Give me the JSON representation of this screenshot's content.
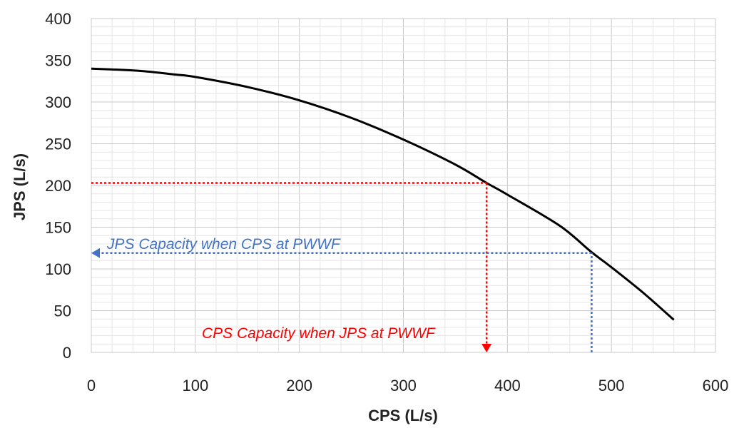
{
  "chart_data": {
    "type": "line",
    "xlabel": "CPS (L/s)",
    "ylabel": "JPS (L/s)",
    "xlim": [
      0,
      600
    ],
    "ylim": [
      0,
      400
    ],
    "xticks": [
      "0",
      "100",
      "200",
      "300",
      "400",
      "500",
      "600"
    ],
    "yticks": [
      "0",
      "50",
      "100",
      "150",
      "200",
      "250",
      "300",
      "350",
      "400"
    ],
    "grid": true,
    "series": [
      {
        "color": "#000000",
        "x": [
          0,
          20,
          50,
          80,
          100,
          150,
          200,
          250,
          300,
          350,
          380,
          400,
          450,
          480,
          500,
          530,
          560
        ],
        "y": [
          340,
          339,
          337,
          333,
          330,
          318,
          302,
          281,
          255,
          225,
          203,
          189,
          152,
          121,
          102,
          72,
          39
        ]
      }
    ],
    "annotations": [
      {
        "name": "cps-capacity",
        "text": "CPS Capacity when JPS at PWWF",
        "color": "#ff0000",
        "point": [
          380,
          203
        ]
      },
      {
        "name": "jps-capacity",
        "text": "JPS Capacity when CPS at PWWF",
        "color": "#4472c4",
        "point": [
          481,
          119
        ]
      }
    ]
  }
}
